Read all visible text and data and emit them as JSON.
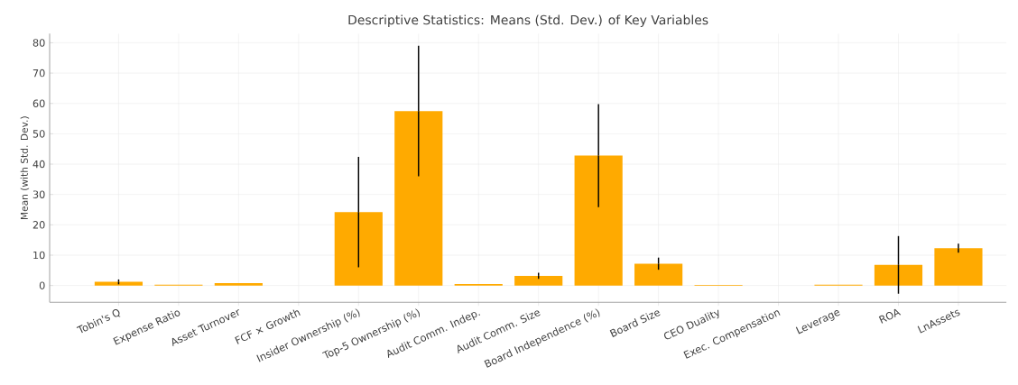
{
  "chart_data": {
    "type": "bar",
    "title": "Descriptive Statistics: Means (Std. Dev.) of Key Variables",
    "ylabel": "Mean (with Std. Dev.)",
    "categories": [
      "Tobin's Q",
      "Expense Ratio",
      "Asset Turnover",
      "FCF × Growth",
      "Insider Ownership (%)",
      "Top-5 Ownership (%)",
      "Audit Comm. Indep.",
      "Audit Comm. Size",
      "Board Independence (%)",
      "Board Size",
      "CEO Duality",
      "Exec. Compensation",
      "Leverage",
      "ROA",
      "LnAssets"
    ],
    "values": [
      1.2,
      0.3,
      0.8,
      0,
      24.2,
      57.5,
      0.5,
      3.2,
      42.8,
      7.2,
      0.2,
      0,
      0.3,
      6.8,
      12.3
    ],
    "errors": [
      0.8,
      null,
      null,
      null,
      18.2,
      21.5,
      null,
      1,
      17,
      2,
      null,
      null,
      null,
      9.5,
      1.5
    ],
    "color": "#ffaa00",
    "ylim": [
      -5.5,
      83
    ],
    "yticks": [
      0,
      10,
      20,
      30,
      40,
      50,
      60,
      70,
      80
    ],
    "grid": true
  }
}
